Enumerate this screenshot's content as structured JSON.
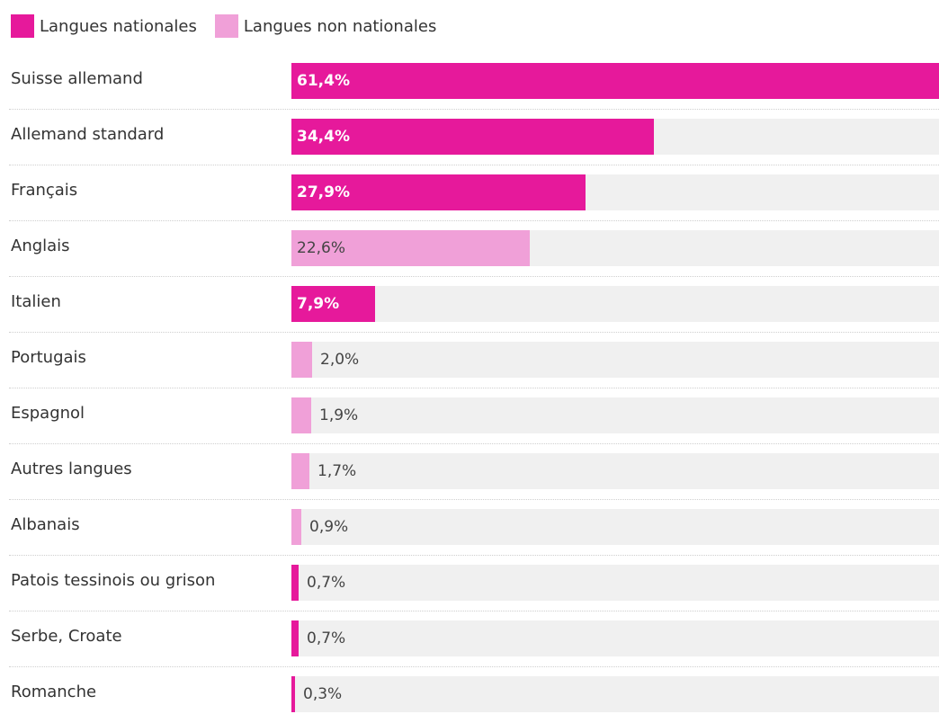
{
  "legend": [
    {
      "label": "Langues nationales",
      "color": "#e6199b"
    },
    {
      "label": "Langues non nationales",
      "color": "#f0a0d8"
    }
  ],
  "chart_data": {
    "type": "bar",
    "orientation": "horizontal",
    "xlim": [
      0,
      61.4
    ],
    "grid": false,
    "legend_position": "top-left",
    "categories": [
      "Suisse allemand",
      "Allemand standard",
      "Français",
      "Anglais",
      "Italien",
      "Portugais",
      "Espagnol",
      "Autres langues",
      "Albanais",
      "Patois tessinois ou grison",
      "Serbe, Croate",
      "Romanche"
    ],
    "values": [
      61.4,
      34.4,
      27.9,
      22.6,
      7.9,
      2.0,
      1.9,
      1.7,
      0.9,
      0.7,
      0.7,
      0.3
    ],
    "value_labels": [
      "61,4%",
      "34,4%",
      "27,9%",
      "22,6%",
      "7,9%",
      "2,0%",
      "1,9%",
      "1,7%",
      "0,9%",
      "0,7%",
      "0,7%",
      "0,3%"
    ],
    "groups": [
      "Langues nationales",
      "Langues nationales",
      "Langues nationales",
      "Langues non nationales",
      "Langues nationales",
      "Langues non nationales",
      "Langues non nationales",
      "Langues non nationales",
      "Langues non nationales",
      "Langues nationales",
      "Langues nationales",
      "Langues nationales"
    ],
    "colors": {
      "Langues nationales": "#e6199b",
      "Langues non nationales": "#f0a0d8",
      "track": "#f0f0f0"
    }
  }
}
